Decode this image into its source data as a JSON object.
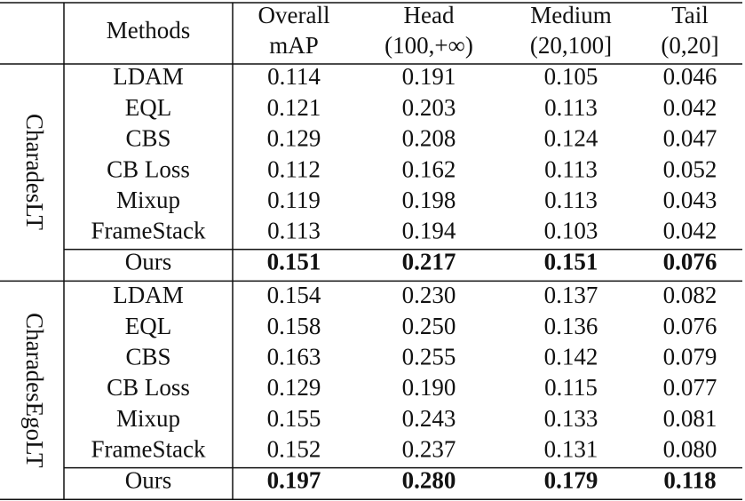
{
  "header": {
    "columns": [
      [
        "Methods"
      ],
      [
        "Overall",
        "mAP"
      ],
      [
        "Head",
        "(100,+∞)"
      ],
      [
        "Medium",
        "(20,100]"
      ],
      [
        "Tail",
        "(0,20]"
      ]
    ]
  },
  "groups": [
    {
      "name": "CharadesLT",
      "rows": [
        [
          "LDAM",
          "0.114",
          "0.191",
          "0.105",
          "0.046"
        ],
        [
          "EQL",
          "0.121",
          "0.203",
          "0.113",
          "0.042"
        ],
        [
          "CBS",
          "0.129",
          "0.208",
          "0.124",
          "0.047"
        ],
        [
          "CB Loss",
          "0.112",
          "0.162",
          "0.113",
          "0.052"
        ],
        [
          "Mixup",
          "0.119",
          "0.198",
          "0.113",
          "0.043"
        ],
        [
          "FrameStack",
          "0.113",
          "0.194",
          "0.103",
          "0.042"
        ],
        [
          "Ours",
          "0.151",
          "0.217",
          "0.151",
          "0.076"
        ]
      ]
    },
    {
      "name": "CharadesEgoLT",
      "rows": [
        [
          "LDAM",
          "0.154",
          "0.230",
          "0.137",
          "0.082"
        ],
        [
          "EQL",
          "0.158",
          "0.250",
          "0.136",
          "0.076"
        ],
        [
          "CBS",
          "0.163",
          "0.255",
          "0.142",
          "0.079"
        ],
        [
          "CB Loss",
          "0.129",
          "0.190",
          "0.115",
          "0.077"
        ],
        [
          "Mixup",
          "0.155",
          "0.243",
          "0.133",
          "0.081"
        ],
        [
          "FrameStack",
          "0.152",
          "0.237",
          "0.131",
          "0.080"
        ],
        [
          "Ours",
          "0.197",
          "0.280",
          "0.179",
          "0.118"
        ]
      ]
    }
  ]
}
